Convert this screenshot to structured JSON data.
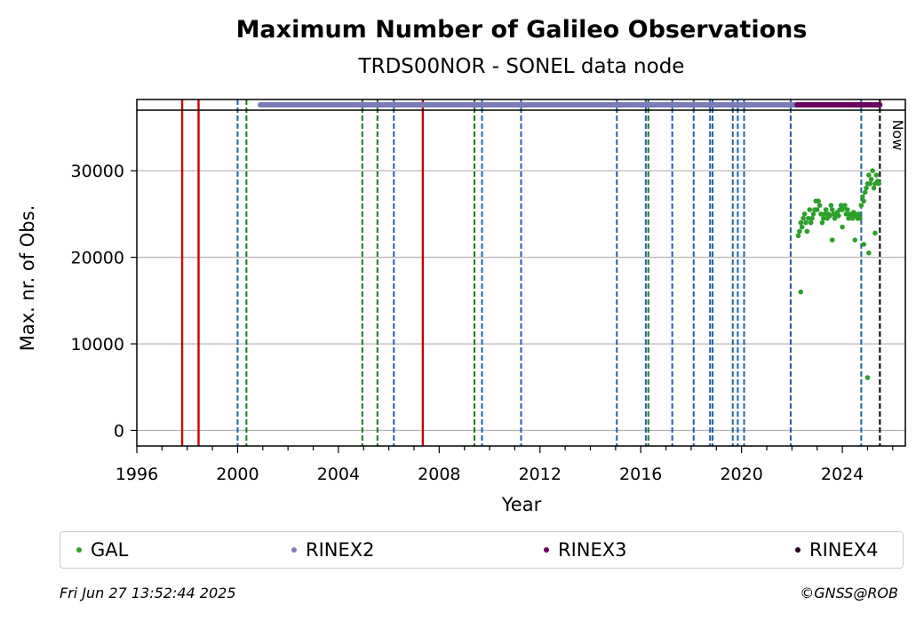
{
  "chart_data": {
    "type": "scatter",
    "title": "Maximum Number of Galileo Observations",
    "subtitle": "TRDS00NOR - SONEL data node",
    "xlabel": "Year",
    "ylabel": "Max. nr. of Obs.",
    "xlim": [
      1996,
      2026.5
    ],
    "ylim": [
      -1800,
      37000
    ],
    "x_ticks": [
      1996,
      2000,
      2004,
      2008,
      2012,
      2016,
      2020,
      2024
    ],
    "y_ticks": [
      0,
      10000,
      20000,
      30000
    ],
    "grid": "horizontal",
    "now_label": "Now",
    "now_x": 2025.49,
    "event_lines": {
      "red_solid": [
        1997.8,
        1998.45,
        2007.35
      ],
      "blue_dashed": [
        2000.0,
        2006.2,
        2009.7,
        2011.25,
        2015.05,
        2016.2,
        2017.25,
        2018.1,
        2018.75,
        2018.85,
        2019.65,
        2019.85,
        2020.1,
        2021.95,
        2024.75
      ],
      "green_dashed": [
        2000.35,
        2004.95,
        2005.55,
        2009.4,
        2016.3
      ]
    },
    "availability": [
      {
        "name": "RINEX2",
        "start": 2000.9,
        "end": 2022.2
      },
      {
        "name": "RINEX3",
        "start": 2022.2,
        "end": 2025.49
      }
    ],
    "series": [
      {
        "name": "GAL",
        "color": "#2ca02c",
        "x": [
          2022.25,
          2022.3,
          2022.35,
          2022.4,
          2022.45,
          2022.5,
          2022.55,
          2022.6,
          2022.65,
          2022.7,
          2022.75,
          2022.8,
          2022.85,
          2022.9,
          2022.95,
          2023.0,
          2023.05,
          2023.1,
          2023.15,
          2023.2,
          2023.25,
          2023.3,
          2023.35,
          2023.4,
          2023.45,
          2023.5,
          2023.55,
          2023.6,
          2023.65,
          2023.7,
          2023.75,
          2023.8,
          2023.85,
          2023.9,
          2023.95,
          2024.0,
          2024.05,
          2024.1,
          2024.15,
          2024.2,
          2024.25,
          2024.3,
          2024.35,
          2024.4,
          2024.45,
          2024.5,
          2024.55,
          2024.6,
          2024.65,
          2024.7,
          2024.75,
          2024.8,
          2024.85,
          2024.9,
          2024.95,
          2025.0,
          2025.05,
          2025.1,
          2025.15,
          2025.2,
          2025.25,
          2025.3,
          2025.35,
          2025.4,
          2025.45,
          2022.35,
          2023.6,
          2024.0,
          2024.5,
          2024.85,
          2025.0,
          2025.05,
          2025.3
        ],
        "values": [
          22500,
          23000,
          24000,
          23500,
          24500,
          25000,
          24000,
          23000,
          24500,
          25500,
          24000,
          24500,
          25000,
          25500,
          26500,
          25500,
          26500,
          26000,
          25000,
          24000,
          24500,
          25000,
          25500,
          24500,
          25000,
          24800,
          26000,
          25500,
          25000,
          24500,
          25000,
          25200,
          24800,
          25500,
          26000,
          25500,
          25800,
          26000,
          25000,
          25500,
          24500,
          25000,
          24800,
          24500,
          25200,
          25000,
          24800,
          24500,
          25000,
          24500,
          26000,
          27000,
          26500,
          27500,
          28000,
          28500,
          29500,
          28500,
          29000,
          30000,
          28000,
          28500,
          29500,
          28800,
          28500,
          16000,
          22000,
          23500,
          22000,
          21500,
          6100,
          20500,
          22800
        ]
      }
    ],
    "legend": [
      {
        "name": "GAL",
        "color": "#2ca02c"
      },
      {
        "name": "RINEX2",
        "color": "#7b7bb8"
      },
      {
        "name": "RINEX3",
        "color": "#6a005f"
      },
      {
        "name": "RINEX4",
        "color": "#24001a"
      }
    ]
  },
  "footer": {
    "timestamp": "Fri Jun 27 13:52:44 2025",
    "credit": "©GNSS@ROB"
  }
}
